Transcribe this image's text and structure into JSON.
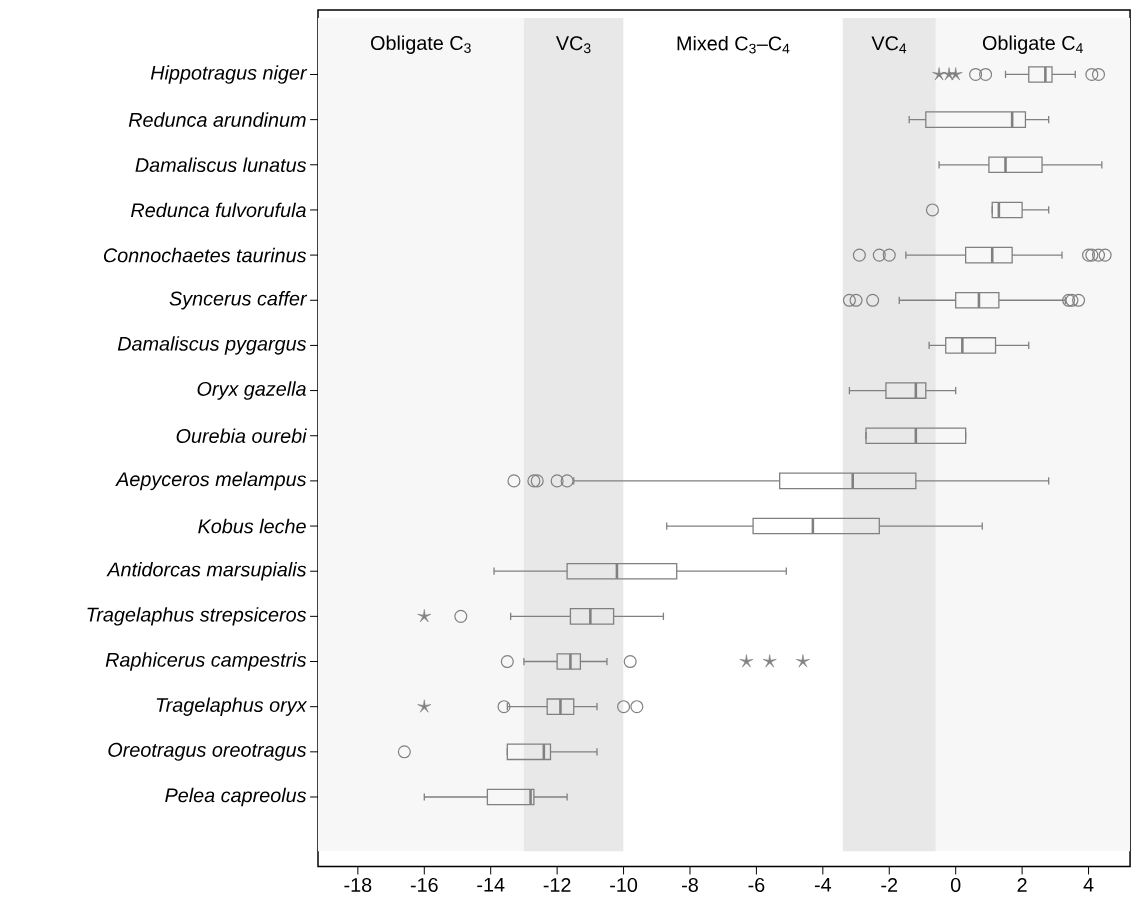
{
  "chart_data": {
    "type": "box",
    "orientation": "horizontal",
    "categories": [
      "Hippotragus niger",
      "Redunca arundinum",
      "Damaliscus lunatus",
      "Redunca fulvorufula",
      "Connochaetes taurinus",
      "Syncerus caffer",
      "Damaliscus pygargus",
      "Oryx gazella",
      "Ourebia ourebi",
      "Aepyceros melampus",
      "Kobus leche",
      "Antidorcas marsupialis",
      "Tragelaphus strepsiceros",
      "Raphicerus campestris",
      "Tragelaphus oryx",
      "Oreotragus oreotragus",
      "Pelea capreolus"
    ],
    "series": [
      {
        "color": "#808080",
        "marker": "circle",
        "boxes": [
          {
            "low": 1.5,
            "q1": 2.2,
            "median": 2.7,
            "q3": 2.9,
            "high": 3.6,
            "outliers": [
              0.6,
              0.9,
              4.1,
              4.3
            ]
          },
          {
            "low": -1.4,
            "q1": -0.9,
            "median": 1.7,
            "q3": 2.1,
            "high": 2.8
          },
          {
            "low": -0.5,
            "q1": 1.0,
            "median": 1.5,
            "q3": 2.6,
            "high": 4.4
          },
          {
            "low": 1.1,
            "q1": 1.1,
            "median": 1.3,
            "q3": 2.0,
            "high": 2.8,
            "outliers": [
              -0.7
            ]
          },
          {
            "low": -1.5,
            "q1": 0.3,
            "median": 1.1,
            "q3": 1.7,
            "high": 3.2,
            "outliers": [
              -2.9,
              -2.3,
              -2.0,
              4.0,
              4.1,
              4.3,
              4.5
            ]
          },
          {
            "low": -1.7,
            "q1": 0.0,
            "median": 0.7,
            "q3": 1.3,
            "high": 3.3,
            "outliers": [
              -3.2,
              -3.0,
              -2.5,
              3.4,
              3.5,
              3.7
            ]
          },
          {
            "low": -0.8,
            "q1": -0.3,
            "median": 0.2,
            "q3": 1.2,
            "high": 2.2
          },
          {
            "low": -3.2,
            "q1": -2.1,
            "median": -1.2,
            "q3": -0.9,
            "high": 0.0
          },
          {
            "low": -2.7,
            "q1": -2.7,
            "median": -1.2,
            "q3": 0.3,
            "high": 0.3
          },
          {
            "low": -11.5,
            "q1": -5.3,
            "median": -3.1,
            "q3": -1.2,
            "high": 2.8,
            "outliers": [
              -13.3,
              -12.7,
              -12.6,
              -12.0,
              -11.7
            ]
          },
          {
            "low": -8.7,
            "q1": -6.1,
            "median": -4.3,
            "q3": -2.3,
            "high": 0.8
          },
          {
            "low": -13.9,
            "q1": -11.7,
            "median": -10.2,
            "q3": -8.4,
            "high": -5.1
          },
          {
            "low": -13.4,
            "q1": -11.6,
            "median": -11.0,
            "q3": -10.3,
            "high": -8.8,
            "outliers": [
              -14.9
            ]
          },
          {
            "low": -13.0,
            "q1": -12.0,
            "median": -11.6,
            "q3": -11.3,
            "high": -10.5,
            "outliers": [
              -13.5,
              -9.8
            ]
          },
          {
            "low": -13.5,
            "q1": -12.3,
            "median": -11.9,
            "q3": -11.5,
            "high": -10.8,
            "outliers": [
              -13.6,
              -10.0,
              -9.6
            ]
          },
          {
            "low": -13.5,
            "q1": -13.5,
            "median": -12.4,
            "q3": -12.2,
            "high": -10.8,
            "outliers": [
              -16.6
            ]
          },
          {
            "low": -16.0,
            "q1": -14.1,
            "median": -12.8,
            "q3": -12.7,
            "high": -11.7
          }
        ]
      },
      {
        "type": "scatter",
        "color": "#808080",
        "marker": "star",
        "x": [
          "Hippotragus niger",
          "Hippotragus niger",
          "Hippotragus niger",
          "Tragelaphus strepsiceros",
          "Raphicerus campestris",
          "Raphicerus campestris",
          "Raphicerus campestris",
          "Tragelaphus oryx"
        ],
        "values": [
          -0.5,
          -0.2,
          0.0,
          -16.0,
          -6.3,
          -5.6,
          -4.6,
          -16.0
        ]
      }
    ],
    "xlim": [
      -19.2,
      5.25
    ],
    "xticks": [
      -18,
      -16,
      -14,
      -12,
      -10,
      -8,
      -6,
      -4,
      -2,
      0,
      2,
      4
    ],
    "bands": [
      {
        "axis": "x",
        "from": -19.2,
        "to": -13,
        "label": "Obligate C$_{3}$",
        "color": "#f7f7f7"
      },
      {
        "axis": "x",
        "from": -13,
        "to": -10,
        "label": "VC$_{3}$",
        "color": "#e8e8e8"
      },
      {
        "axis": "x",
        "from": -10,
        "to": -3.4,
        "label": "Mixed C$_{3}$–C$_{4}$",
        "color": "#ffffff"
      },
      {
        "axis": "x",
        "from": -3.4,
        "to": -0.6,
        "label": "VC$_{4}$",
        "color": "#e8e8e8"
      },
      {
        "axis": "x",
        "from": -0.6,
        "to": 5.25,
        "label": "Obligate C$_{4}$",
        "color": "#f7f7f7"
      }
    ]
  }
}
